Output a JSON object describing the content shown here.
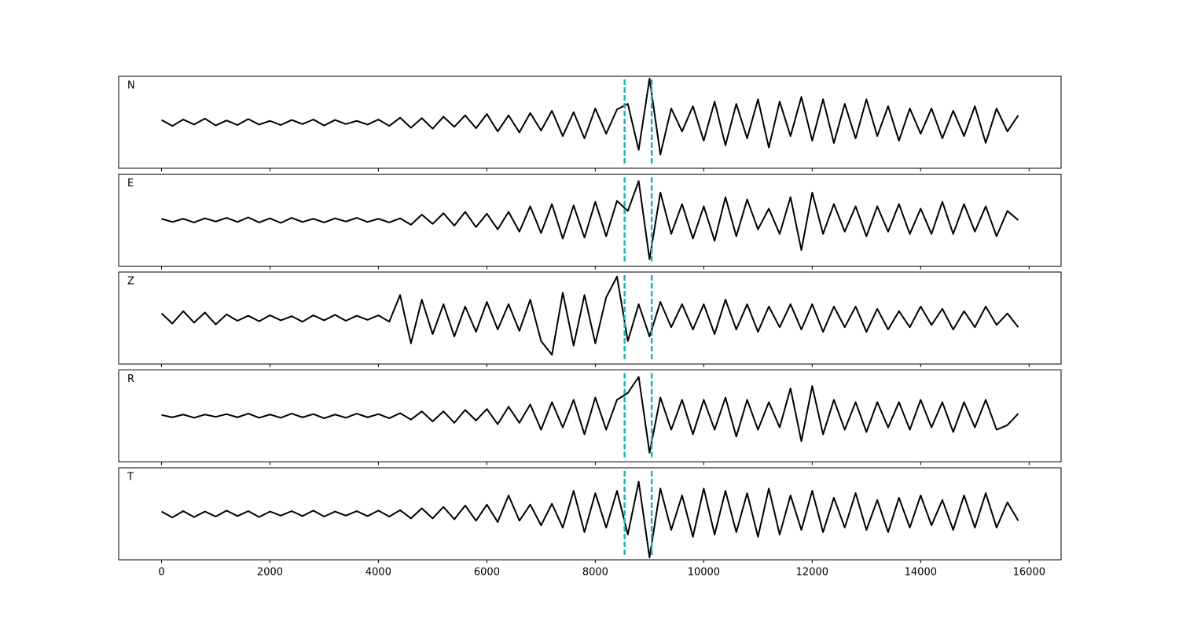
{
  "chart_data": {
    "type": "line",
    "x": [
      0,
      200,
      400,
      600,
      800,
      1000,
      1200,
      1400,
      1600,
      1800,
      2000,
      2200,
      2400,
      2600,
      2800,
      3000,
      3200,
      3400,
      3600,
      3800,
      4000,
      4200,
      4400,
      4600,
      4800,
      5000,
      5200,
      5400,
      5600,
      5800,
      6000,
      6200,
      6400,
      6600,
      6800,
      7000,
      7200,
      7400,
      7600,
      7800,
      8000,
      8200,
      8400,
      8600,
      8800,
      9000,
      9200,
      9400,
      9600,
      9800,
      10000,
      10200,
      10400,
      10600,
      10800,
      11000,
      11200,
      11400,
      11600,
      11800,
      12000,
      12200,
      12400,
      12600,
      12800,
      13000,
      13200,
      13400,
      13600,
      13800,
      14000,
      14200,
      14400,
      14600,
      14800,
      15000,
      15200,
      15400,
      15600,
      15800
    ],
    "xlim": [
      -790,
      16590
    ],
    "xticks": [
      0,
      2000,
      4000,
      6000,
      8000,
      10000,
      12000,
      14000,
      16000
    ],
    "ylim": [
      -1,
      1
    ],
    "line_color": "#000000",
    "panels": [
      {
        "name": "N",
        "values": [
          0.05,
          -0.08,
          0.06,
          -0.05,
          0.08,
          -0.07,
          0.04,
          -0.06,
          0.07,
          -0.05,
          0.03,
          -0.06,
          0.05,
          -0.04,
          0.06,
          -0.07,
          0.05,
          -0.04,
          0.03,
          -0.05,
          0.06,
          -0.08,
          0.1,
          -0.12,
          0.09,
          -0.14,
          0.12,
          -0.1,
          0.15,
          -0.13,
          0.18,
          -0.2,
          0.15,
          -0.22,
          0.2,
          -0.18,
          0.25,
          -0.3,
          0.22,
          -0.35,
          0.3,
          -0.25,
          0.28,
          0.4,
          -0.6,
          0.95,
          -0.7,
          0.3,
          -0.2,
          0.35,
          -0.4,
          0.45,
          -0.5,
          0.4,
          -0.35,
          0.5,
          -0.55,
          0.45,
          -0.3,
          0.55,
          -0.4,
          0.5,
          -0.45,
          0.4,
          -0.35,
          0.5,
          -0.3,
          0.35,
          -0.4,
          0.3,
          -0.25,
          0.3,
          -0.35,
          0.25,
          -0.3,
          0.35,
          -0.45,
          0.3,
          -0.2,
          0.15
        ]
      },
      {
        "name": "E",
        "values": [
          0.03,
          -0.04,
          0.03,
          -0.05,
          0.04,
          -0.03,
          0.05,
          -0.04,
          0.06,
          -0.05,
          0.04,
          -0.06,
          0.05,
          -0.04,
          0.03,
          -0.05,
          0.04,
          -0.03,
          0.05,
          -0.04,
          0.03,
          -0.05,
          0.04,
          -0.1,
          0.12,
          -0.08,
          0.15,
          -0.12,
          0.18,
          -0.15,
          0.14,
          -0.2,
          0.18,
          -0.25,
          0.3,
          -0.28,
          0.35,
          -0.4,
          0.32,
          -0.38,
          0.4,
          -0.35,
          0.42,
          0.2,
          0.85,
          -0.85,
          0.6,
          -0.3,
          0.35,
          -0.4,
          0.3,
          -0.45,
          0.5,
          -0.35,
          0.45,
          -0.2,
          0.25,
          -0.3,
          0.5,
          -0.65,
          0.6,
          -0.3,
          0.35,
          -0.25,
          0.3,
          -0.35,
          0.3,
          -0.25,
          0.35,
          -0.3,
          0.25,
          -0.3,
          0.4,
          -0.3,
          0.35,
          -0.25,
          0.3,
          -0.35,
          0.2,
          0.0
        ]
      },
      {
        "name": "Z",
        "values": [
          0.1,
          -0.12,
          0.15,
          -0.1,
          0.12,
          -0.14,
          0.08,
          -0.06,
          0.05,
          -0.07,
          0.06,
          -0.05,
          0.04,
          -0.08,
          0.06,
          -0.05,
          0.07,
          -0.06,
          0.05,
          -0.04,
          0.06,
          -0.08,
          0.5,
          -0.55,
          0.4,
          -0.35,
          0.3,
          -0.4,
          0.25,
          -0.3,
          0.35,
          -0.25,
          0.3,
          -0.28,
          0.4,
          -0.5,
          -0.8,
          0.55,
          -0.6,
          0.5,
          -0.55,
          0.45,
          0.9,
          -0.5,
          0.3,
          -0.4,
          0.35,
          -0.2,
          0.3,
          -0.25,
          0.3,
          -0.35,
          0.4,
          -0.25,
          0.3,
          -0.3,
          0.25,
          -0.2,
          0.3,
          -0.25,
          0.3,
          -0.3,
          0.25,
          -0.2,
          0.25,
          -0.3,
          0.2,
          -0.25,
          0.15,
          -0.2,
          0.25,
          -0.15,
          0.2,
          -0.25,
          0.15,
          -0.2,
          0.25,
          -0.15,
          0.1,
          -0.2
        ]
      },
      {
        "name": "R",
        "values": [
          0.02,
          -0.03,
          0.03,
          -0.04,
          0.03,
          -0.02,
          0.04,
          -0.03,
          0.05,
          -0.04,
          0.03,
          -0.04,
          0.05,
          -0.03,
          0.04,
          -0.05,
          0.03,
          -0.04,
          0.05,
          -0.03,
          0.04,
          -0.05,
          0.06,
          -0.08,
          0.1,
          -0.12,
          0.1,
          -0.15,
          0.13,
          -0.1,
          0.15,
          -0.18,
          0.2,
          -0.15,
          0.25,
          -0.3,
          0.3,
          -0.25,
          0.35,
          -0.4,
          0.4,
          -0.3,
          0.35,
          0.5,
          0.85,
          -0.8,
          0.4,
          -0.3,
          0.35,
          -0.4,
          0.35,
          -0.3,
          0.4,
          -0.45,
          0.35,
          -0.3,
          0.3,
          -0.25,
          0.6,
          -0.55,
          0.65,
          -0.4,
          0.35,
          -0.3,
          0.3,
          -0.35,
          0.3,
          -0.25,
          0.3,
          -0.3,
          0.35,
          -0.25,
          0.3,
          -0.35,
          0.3,
          -0.25,
          0.35,
          -0.3,
          -0.2,
          0.05
        ]
      },
      {
        "name": "T",
        "values": [
          0.05,
          -0.08,
          0.06,
          -0.07,
          0.05,
          -0.06,
          0.07,
          -0.05,
          0.06,
          -0.07,
          0.05,
          -0.04,
          0.06,
          -0.05,
          0.07,
          -0.06,
          0.05,
          -0.04,
          0.06,
          -0.05,
          0.07,
          -0.06,
          0.08,
          -0.1,
          0.12,
          -0.1,
          0.15,
          -0.12,
          0.18,
          -0.15,
          0.2,
          -0.18,
          0.4,
          -0.15,
          0.2,
          -0.25,
          0.22,
          -0.3,
          0.5,
          -0.4,
          0.45,
          -0.3,
          0.5,
          -0.45,
          0.7,
          -0.95,
          0.55,
          -0.35,
          0.4,
          -0.5,
          0.55,
          -0.45,
          0.5,
          -0.4,
          0.45,
          -0.5,
          0.55,
          -0.45,
          0.4,
          -0.35,
          0.5,
          -0.4,
          0.35,
          -0.3,
          0.45,
          -0.35,
          0.3,
          -0.4,
          0.35,
          -0.3,
          0.4,
          -0.25,
          0.3,
          -0.35,
          0.4,
          -0.3,
          0.45,
          -0.3,
          0.25,
          -0.15
        ]
      }
    ],
    "markers": {
      "color": "#17b8b0",
      "x": [
        8540,
        9040
      ]
    }
  }
}
